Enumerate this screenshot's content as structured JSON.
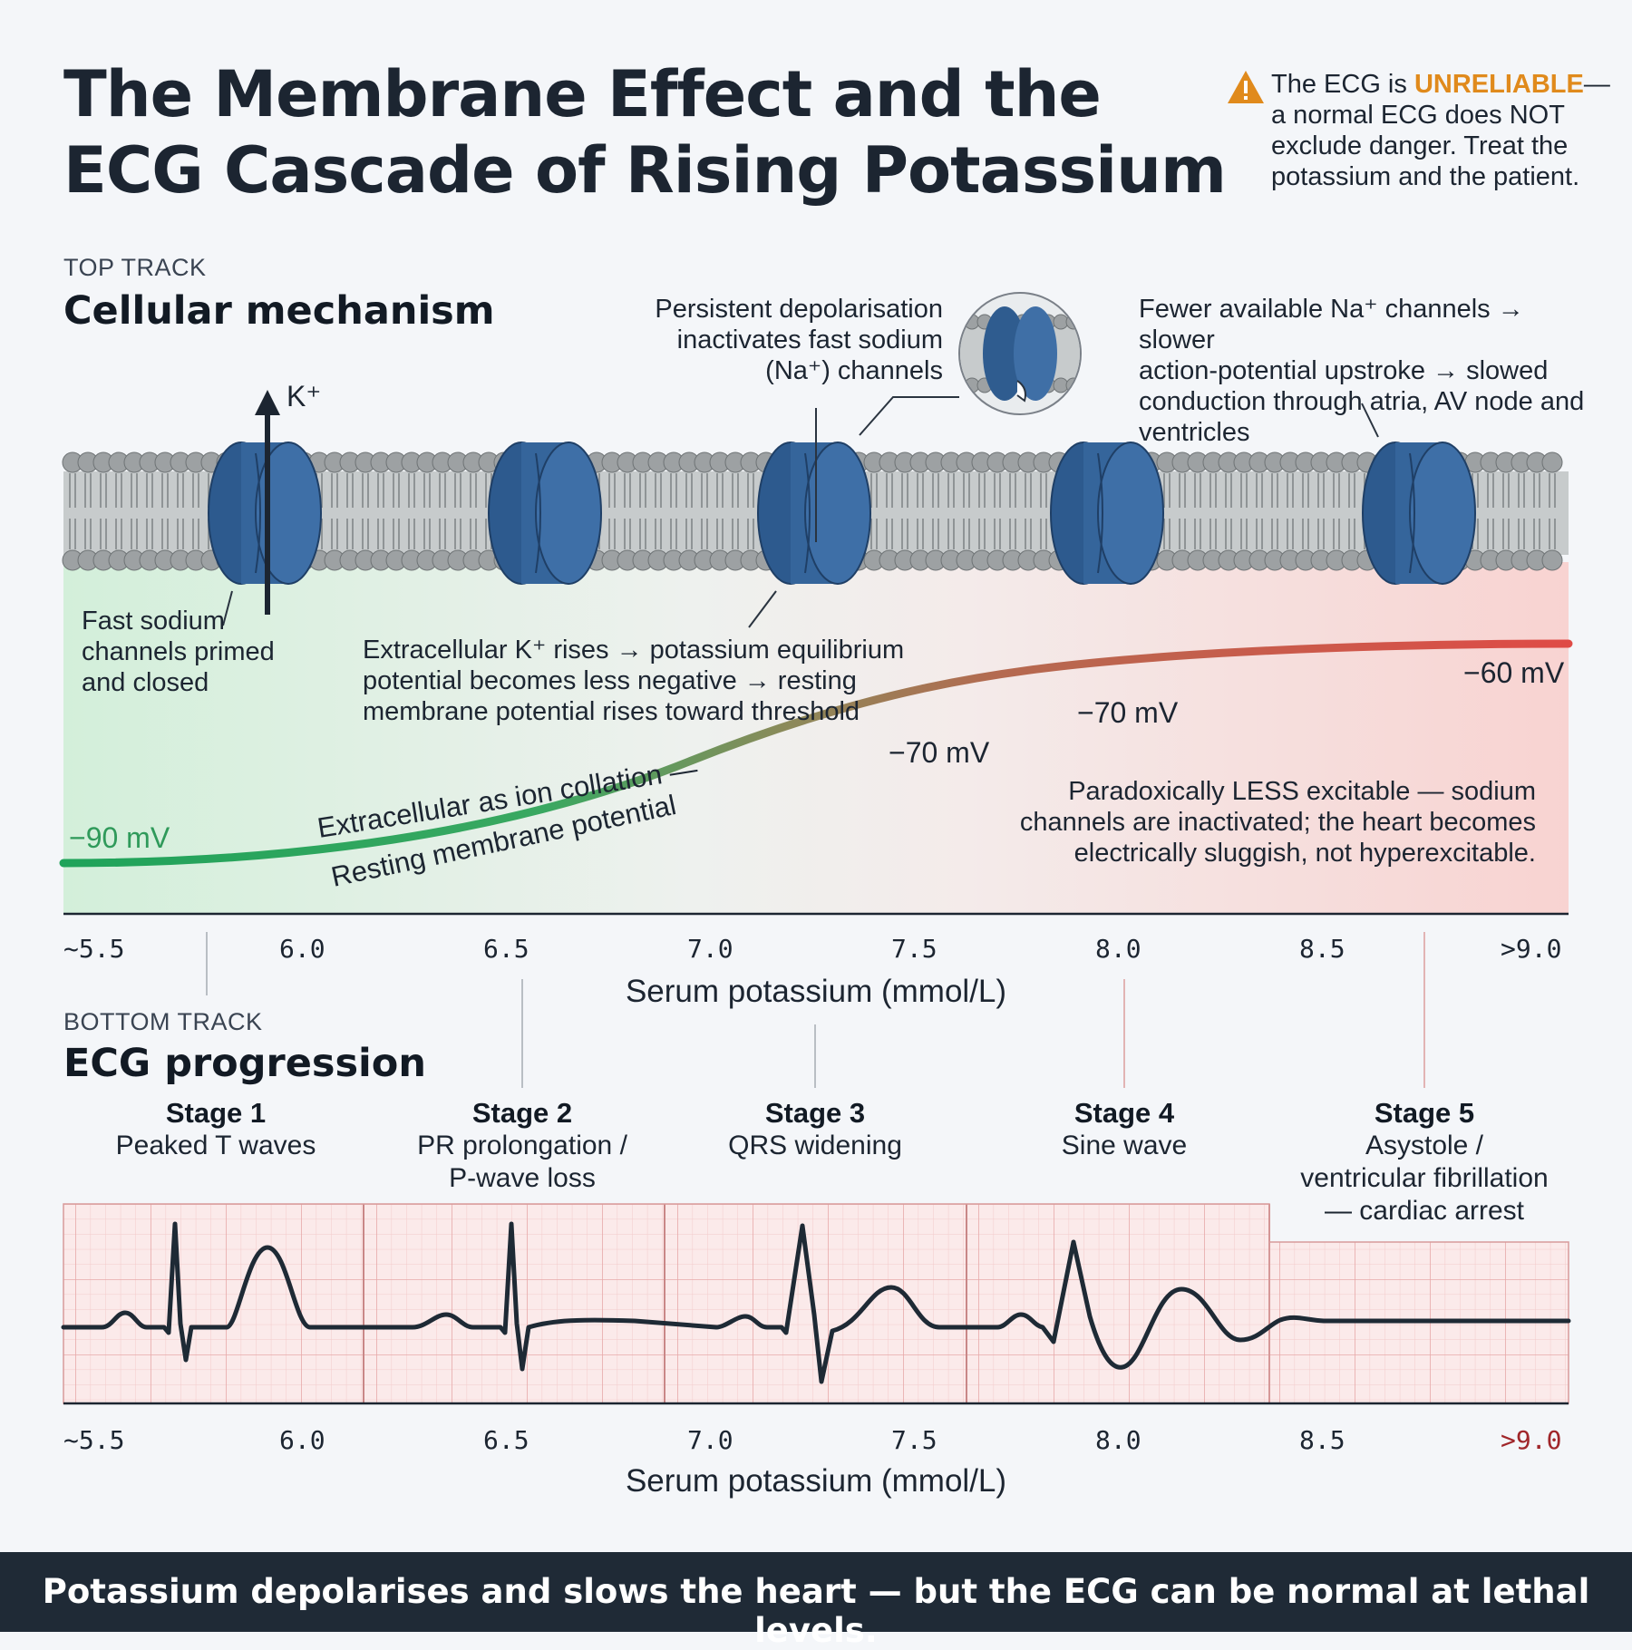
{
  "title": {
    "line1": "The Membrane Effect and the",
    "line2": "ECG Cascade of Rising Potassium"
  },
  "warning": {
    "icon": "warning-triangle-icon",
    "prefix": "The ECG is ",
    "emphasis": "UNRELIABLE",
    "rest": "— a normal ECG does NOT exclude danger. Treat the potassium and the patient.",
    "accent_color": "#e08a1c"
  },
  "top_track": {
    "kicker": "TOP TRACK",
    "title": "Cellular mechanism",
    "potassium_label": "K⁺",
    "labels": {
      "primed": [
        "Fast sodium",
        "channels primed",
        "and closed"
      ],
      "inactivation": [
        "Persistent depolarisation",
        "inactivates fast sodium",
        "(Na⁺) channels"
      ],
      "fewer_channels": [
        "Fewer available Na⁺ channels → slower",
        "action-potential upstroke → slowed",
        "conduction through atria, AV node and",
        "ventricles"
      ],
      "rise": [
        "Extracellular K⁺ rises → potassium equilibrium",
        "potential becomes less negative → resting",
        "membrane potential rises toward threshold"
      ],
      "paradox": [
        "Paradoxically LESS excitable — sodium",
        "channels are inactivated; the heart becomes",
        "electrically sluggish, not hyperexcitable."
      ]
    },
    "curve_label_upper": "Extracellular as ion collation —",
    "curve_label_lower": "Resting membrane potential",
    "mv_labels": [
      "−90 mV",
      "−70 mV",
      "−70 mV",
      "−60 mV"
    ],
    "x_ticks": [
      "~5.5",
      "6.0",
      "6.5",
      "7.0",
      "7.5",
      "8.0",
      "8.5",
      ">9.0"
    ],
    "x_axis_title": "Serum potassium (mmol/L)"
  },
  "bottom_track": {
    "kicker": "BOTTOM TRACK",
    "title": "ECG progression",
    "stages": [
      {
        "name": "Stage 1",
        "desc": [
          "Peaked T waves"
        ]
      },
      {
        "name": "Stage 2",
        "desc": [
          "PR prolongation /",
          "P-wave loss"
        ]
      },
      {
        "name": "Stage 3",
        "desc": [
          "QRS widening"
        ]
      },
      {
        "name": "Stage 4",
        "desc": [
          "Sine wave"
        ]
      },
      {
        "name": "Stage 5",
        "desc": [
          "Asystole /",
          "ventricular fibrillation",
          "— cardiac arrest"
        ]
      }
    ],
    "x_ticks": [
      "~5.5",
      "6.0",
      "6.5",
      "7.0",
      "7.5",
      "8.0",
      "8.5",
      ">9.0"
    ],
    "x_axis_title": "Serum potassium (mmol/L)"
  },
  "footer": "Potassium depolarises and slows the heart — but the ECG can be normal at lethal levels.",
  "colors": {
    "channel": "#3b6aa0",
    "normal": "#2faa5c",
    "danger": "#e2584f",
    "ecg_trace": "#1e2a35",
    "ecg_grid": "#f0b8b8"
  }
}
